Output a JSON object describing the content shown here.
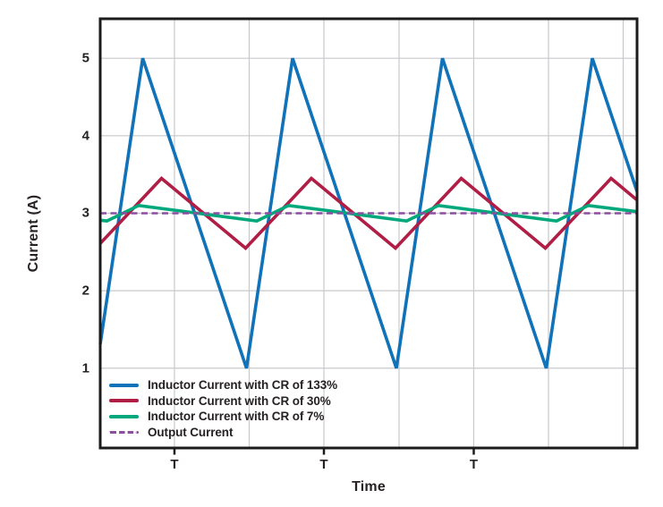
{
  "figure": {
    "background": "#ffffff",
    "border_color": "#1b1b1b",
    "grid_color": "#c8c9cb",
    "tick_color": "#1b1b1b",
    "text_color": "#262223"
  },
  "chart_data": {
    "type": "line",
    "title": "",
    "xlabel": "Time",
    "ylabel": "Current (A)",
    "xlim": [
      0,
      1
    ],
    "ylim": [
      -0.03,
      5.51
    ],
    "grid": true,
    "legend_position": "lower-left inside plot area",
    "y_ticks": [
      {
        "value": 5,
        "label": "5"
      },
      {
        "value": 4,
        "label": "4"
      },
      {
        "value": 3,
        "label": "3"
      },
      {
        "value": 2,
        "label": "2"
      },
      {
        "value": 1,
        "label": "1"
      }
    ],
    "x_ticks": [
      {
        "pos": 0.1383,
        "label": "T"
      },
      {
        "pos": 0.4167,
        "label": "T"
      },
      {
        "pos": 0.6958,
        "label": "T"
      }
    ],
    "h_gridlines": [
      1,
      2,
      3,
      4,
      5
    ],
    "v_gridlines": [
      0.1383,
      0.2775,
      0.4167,
      0.5567,
      0.6958,
      0.835,
      0.9742
    ],
    "series": [
      {
        "name": "Inductor Current with CR of 133%",
        "color": "#1072b8",
        "style": "solid",
        "average_A": 3,
        "peak_A": 5,
        "valley_A": 1,
        "x": [
          0,
          0.0792,
          0.2725,
          0.3583,
          0.5517,
          0.6375,
          0.8308,
          0.9167,
          1
        ],
        "y": [
          1.31,
          5,
          1,
          5,
          1,
          5,
          1,
          5,
          3.28
        ]
      },
      {
        "name": "Inductor Current with CR of 30%",
        "color": "#b01d45",
        "style": "solid",
        "average_A": 3,
        "peak_A": 3.45,
        "valley_A": 2.55,
        "x": [
          0,
          0.1142,
          0.2708,
          0.3933,
          0.55,
          0.6725,
          0.8292,
          0.9517,
          1
        ],
        "y": [
          2.61,
          3.45,
          2.55,
          3.45,
          2.55,
          3.45,
          2.55,
          3.45,
          3.17
        ]
      },
      {
        "name": "Inductor Current with CR of 7%",
        "color": "#00a87c",
        "style": "solid",
        "average_A": 3,
        "peak_A": 3.1,
        "valley_A": 2.9,
        "x": [
          0,
          0.0125,
          0.0717,
          0.2917,
          0.3508,
          0.5708,
          0.63,
          0.85,
          0.9092,
          1
        ],
        "y": [
          2.91,
          2.9,
          3.1,
          2.9,
          3.1,
          2.9,
          3.1,
          2.9,
          3.1,
          3.02
        ]
      },
      {
        "name": "Output Current",
        "color": "#8c4fa0",
        "style": "dashed",
        "average_A": 3,
        "x": [
          0,
          1
        ],
        "y": [
          3,
          3
        ]
      }
    ]
  }
}
